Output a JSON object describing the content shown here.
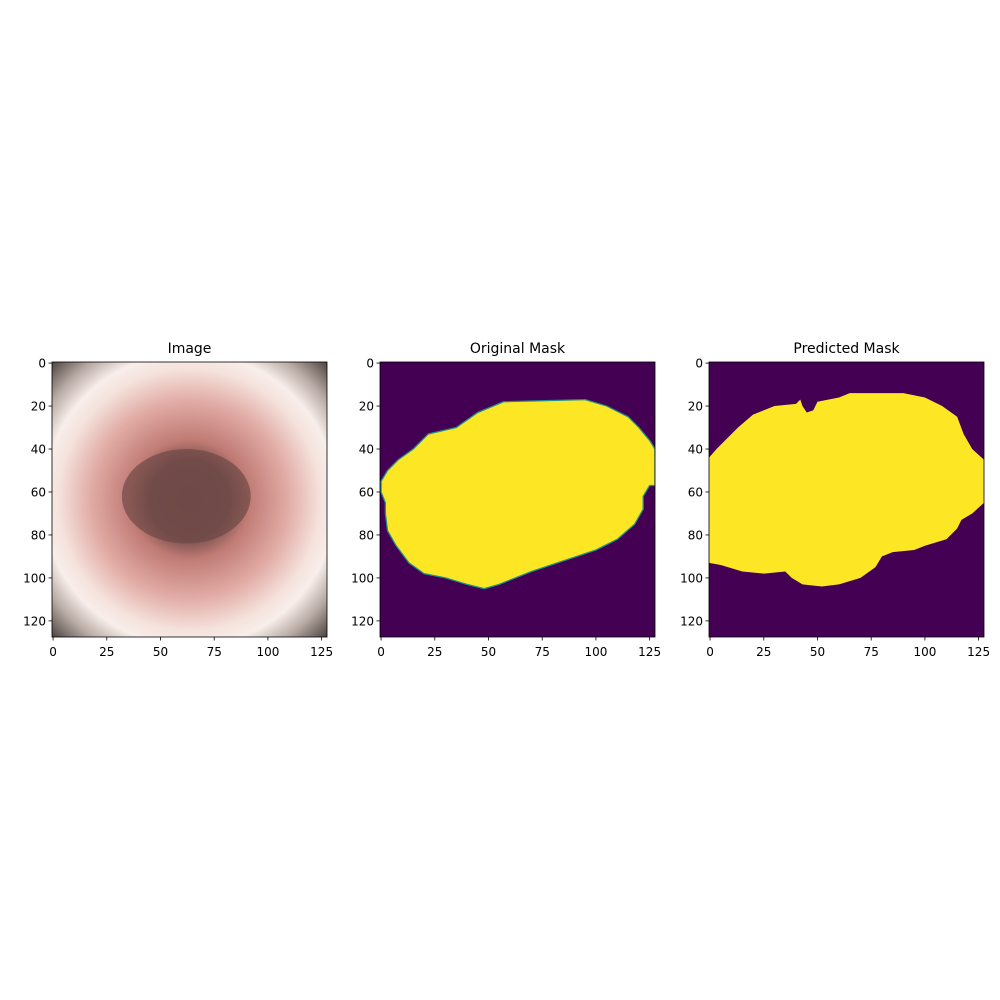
{
  "chart_data": [
    {
      "type": "image",
      "title": "Image",
      "xlim": [
        -0.5,
        127.5
      ],
      "ylim": [
        127.5,
        -0.5
      ],
      "xticks": [
        0,
        25,
        50,
        75,
        100,
        125
      ],
      "yticks": [
        0,
        20,
        40,
        60,
        80,
        100,
        120
      ]
    },
    {
      "type": "image",
      "title": "Original Mask",
      "xlim": [
        -0.5,
        127.5
      ],
      "ylim": [
        127.5,
        -0.5
      ],
      "xticks": [
        0,
        25,
        50,
        75,
        100,
        125
      ],
      "yticks": [
        0,
        20,
        40,
        60,
        80,
        100,
        120
      ]
    },
    {
      "type": "image",
      "title": "Predicted Mask",
      "xlim": [
        -0.5,
        127.5
      ],
      "ylim": [
        127.5,
        -0.5
      ],
      "xticks": [
        0,
        25,
        50,
        75,
        100,
        125
      ],
      "yticks": [
        0,
        20,
        40,
        60,
        80,
        100,
        120
      ]
    }
  ]
}
